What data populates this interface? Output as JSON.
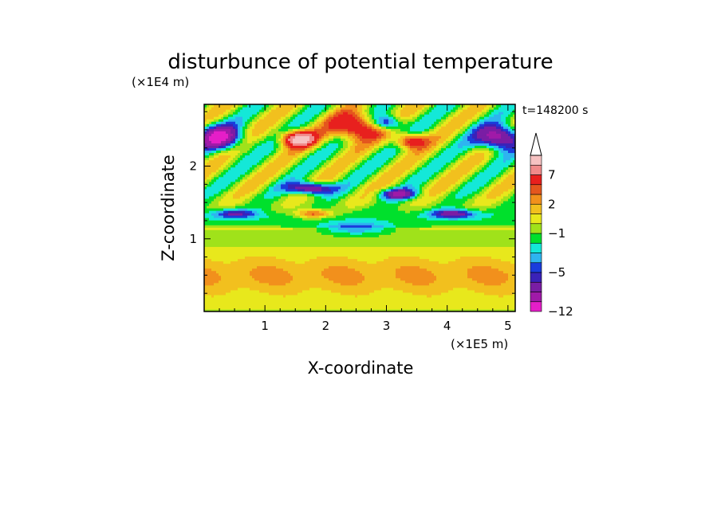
{
  "chart_data": {
    "type": "heatmap",
    "title": "disturbunce of potential temperature",
    "xlabel": "X-coordinate",
    "ylabel": "Z-coordinate",
    "x_unit": "(×1E5 m)",
    "y_unit": "(×1E4 m)",
    "time_label": "t=148200 s",
    "xlim": [
      0,
      5.12
    ],
    "ylim": [
      0,
      2.85
    ],
    "x_ticks": [
      1,
      2,
      3,
      4,
      5
    ],
    "y_ticks": [
      1,
      2
    ],
    "colorbar": {
      "levels": [
        -12,
        -9,
        -7,
        -5,
        -4,
        -3,
        -2,
        -1,
        0,
        1,
        2,
        3,
        4,
        5,
        7,
        9,
        11
      ],
      "labeled_levels": [
        "7",
        "2",
        "−1",
        "−5",
        "−12"
      ],
      "colors": [
        "#e51ec8",
        "#a01aa8",
        "#7a1da4",
        "#3a22b8",
        "#1a3cdc",
        "#2eb4f0",
        "#14e8d8",
        "#00e02c",
        "#a0e21a",
        "#e8e81c",
        "#f2c01e",
        "#f2901c",
        "#e4561e",
        "#e8201e",
        "#f08a8a",
        "#f6c2c2"
      ],
      "extend": "max"
    }
  }
}
